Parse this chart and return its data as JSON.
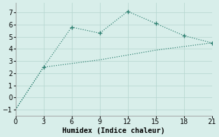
{
  "line1_x": [
    0,
    3,
    6,
    9,
    12,
    15,
    18,
    21
  ],
  "line1_y": [
    -1,
    2.5,
    5.8,
    5.3,
    7.1,
    6.1,
    5.1,
    4.5
  ],
  "line2_x": [
    0,
    3,
    6,
    9,
    12,
    15,
    18,
    21
  ],
  "line2_y": [
    -1,
    2.5,
    2.8,
    3.1,
    3.5,
    3.9,
    4.2,
    4.5
  ],
  "marker1_x": [
    3,
    6,
    9,
    12,
    15,
    18,
    21
  ],
  "marker1_y": [
    2.5,
    5.8,
    5.3,
    7.1,
    6.1,
    5.1,
    4.5
  ],
  "color": "#2a7d6e",
  "bg_color": "#d8eeea",
  "grid_color": "#b8d8d2",
  "xlabel": "Humidex (Indice chaleur)",
  "xlim": [
    0,
    21
  ],
  "ylim": [
    -1.5,
    7.8
  ],
  "xticks": [
    0,
    3,
    6,
    9,
    12,
    15,
    18,
    21
  ],
  "yticks": [
    -1,
    0,
    1,
    2,
    3,
    4,
    5,
    6,
    7
  ],
  "fontsize": 7.5
}
